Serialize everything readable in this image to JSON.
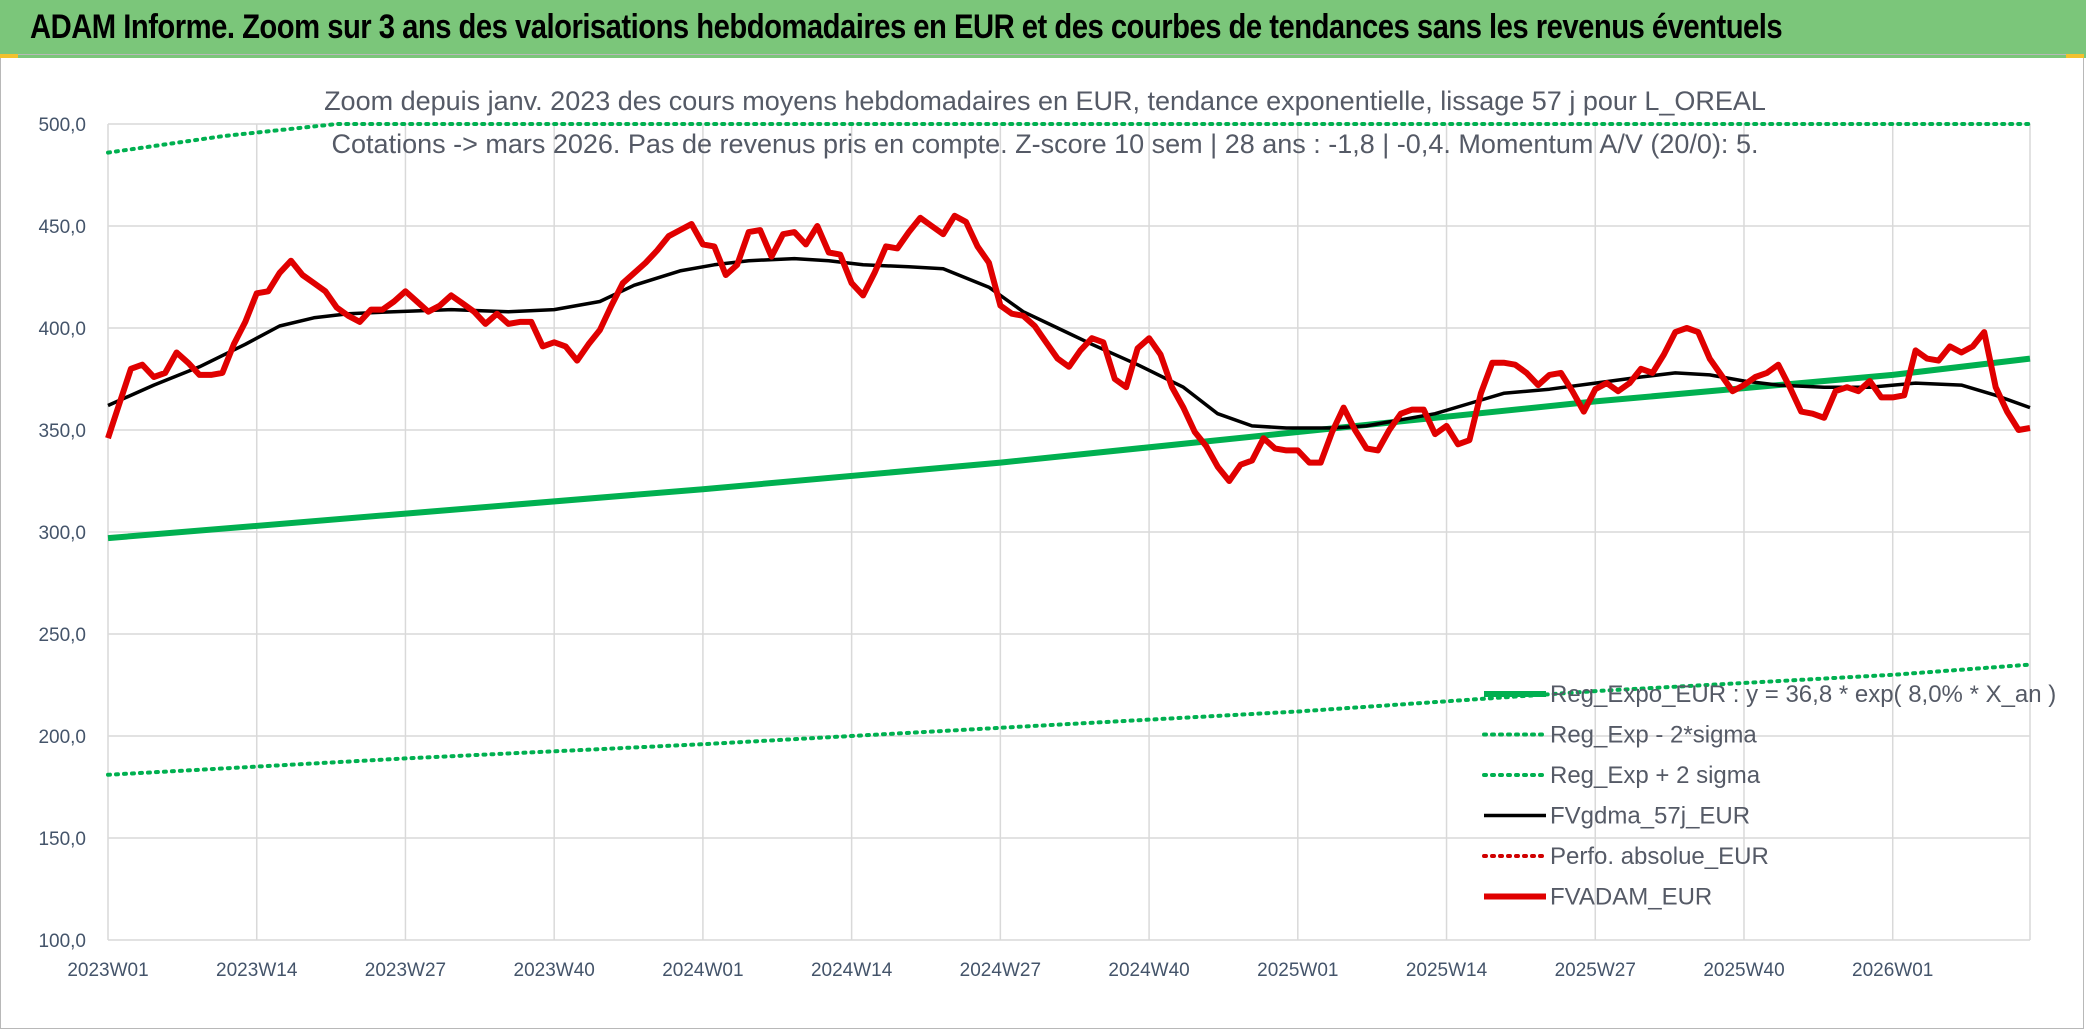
{
  "banner": {
    "title": "ADAM Informe. Zoom sur 3 ans des valorisations hebdomadaires en EUR et des courbes de tendances sans les revenus éventuels"
  },
  "chart_data": {
    "type": "line",
    "title_line1": "Zoom depuis janv. 2023 des cours moyens hebdomadaires en EUR, tendance exponentielle, lissage 57 j pour L_OREAL",
    "title_line2": "Cotations -> mars 2026. Pas de revenus pris en compte. Z-score 10 sem | 28 ans : -1,8 | -0,4. Momentum A/V (20/0): 5.",
    "ylim": [
      100,
      500
    ],
    "y_ticks": [
      "500,0",
      "450,0",
      "400,0",
      "350,0",
      "300,0",
      "250,0",
      "200,0",
      "150,0",
      "100,0"
    ],
    "y_tick_values": [
      500,
      450,
      400,
      350,
      300,
      250,
      200,
      150,
      100
    ],
    "x_ticks": [
      "2023W01",
      "2023W14",
      "2023W27",
      "2023W40",
      "2024W01",
      "2024W14",
      "2024W27",
      "2024W40",
      "2025W01",
      "2025W14",
      "2025W27",
      "2025W40",
      "2026W01"
    ],
    "x_tick_index": [
      0,
      13,
      26,
      39,
      52,
      65,
      78,
      91,
      104,
      117,
      130,
      143,
      156
    ],
    "n_weeks": 169,
    "grid": true,
    "legend_position": "bottom-right",
    "colors": {
      "trend": "#00b050",
      "band": "#00b050",
      "smooth": "#000000",
      "perf": "#d00000",
      "price": "#e00000",
      "grid": "#d9d9d9",
      "banner": "#7bc67a"
    },
    "series": [
      {
        "name": "Reg_Expo_EUR : y = 36,8 * exp( 8,0% *  X_an )",
        "style": "thick-solid",
        "color": "#00b050",
        "points": [
          [
            0,
            297
          ],
          [
            26,
            309
          ],
          [
            52,
            321
          ],
          [
            78,
            334
          ],
          [
            104,
            349
          ],
          [
            130,
            364
          ],
          [
            156,
            377
          ],
          [
            168,
            385
          ]
        ]
      },
      {
        "name": "Reg_Exp - 2*sigma",
        "style": "dotted",
        "color": "#00b050",
        "points": [
          [
            0,
            181
          ],
          [
            26,
            189
          ],
          [
            52,
            196
          ],
          [
            78,
            204
          ],
          [
            104,
            212
          ],
          [
            130,
            222
          ],
          [
            156,
            230
          ],
          [
            168,
            235
          ]
        ]
      },
      {
        "name": "Reg_Exp + 2 sigma",
        "style": "dotted",
        "color": "#00b050",
        "points": [
          [
            0,
            486
          ],
          [
            10,
            494
          ],
          [
            20,
            500
          ],
          [
            168,
            500
          ]
        ]
      },
      {
        "name": "FVgdma_57j_EUR",
        "style": "solid",
        "color": "#000000",
        "points": [
          [
            0,
            362
          ],
          [
            4,
            372
          ],
          [
            8,
            381
          ],
          [
            12,
            392
          ],
          [
            15,
            401
          ],
          [
            18,
            405
          ],
          [
            21,
            407
          ],
          [
            25,
            408
          ],
          [
            30,
            409
          ],
          [
            35,
            408
          ],
          [
            39,
            409
          ],
          [
            43,
            413
          ],
          [
            46,
            421
          ],
          [
            50,
            428
          ],
          [
            53,
            431
          ],
          [
            56,
            433
          ],
          [
            60,
            434
          ],
          [
            63,
            433
          ],
          [
            66,
            431
          ],
          [
            70,
            430
          ],
          [
            73,
            429
          ],
          [
            77,
            420
          ],
          [
            80,
            408
          ],
          [
            83,
            400
          ],
          [
            86,
            392
          ],
          [
            90,
            382
          ],
          [
            94,
            371
          ],
          [
            97,
            358
          ],
          [
            100,
            352
          ],
          [
            103,
            351
          ],
          [
            107,
            351
          ],
          [
            110,
            352
          ],
          [
            113,
            355
          ],
          [
            116,
            358
          ],
          [
            119,
            363
          ],
          [
            122,
            368
          ],
          [
            126,
            370
          ],
          [
            130,
            373
          ],
          [
            134,
            376
          ],
          [
            137,
            378
          ],
          [
            140,
            377
          ],
          [
            143,
            374
          ],
          [
            146,
            372
          ],
          [
            150,
            371
          ],
          [
            154,
            371
          ],
          [
            158,
            373
          ],
          [
            162,
            372
          ],
          [
            165,
            367
          ],
          [
            168,
            361
          ]
        ]
      },
      {
        "name": "Perfo. absolue_EUR",
        "style": "dotted",
        "color": "#d00000",
        "points": []
      },
      {
        "name": "FVADAM_EUR",
        "style": "thick-solid",
        "color": "#e00000",
        "points": [
          [
            0,
            346
          ],
          [
            1,
            363
          ],
          [
            2,
            380
          ],
          [
            3,
            382
          ],
          [
            4,
            376
          ],
          [
            5,
            378
          ],
          [
            6,
            388
          ],
          [
            7,
            383
          ],
          [
            8,
            377
          ],
          [
            9,
            377
          ],
          [
            10,
            378
          ],
          [
            11,
            392
          ],
          [
            12,
            403
          ],
          [
            13,
            417
          ],
          [
            14,
            418
          ],
          [
            15,
            427
          ],
          [
            16,
            433
          ],
          [
            17,
            426
          ],
          [
            18,
            422
          ],
          [
            19,
            418
          ],
          [
            20,
            410
          ],
          [
            21,
            406
          ],
          [
            22,
            403
          ],
          [
            23,
            409
          ],
          [
            24,
            409
          ],
          [
            25,
            413
          ],
          [
            26,
            418
          ],
          [
            27,
            413
          ],
          [
            28,
            408
          ],
          [
            29,
            411
          ],
          [
            30,
            416
          ],
          [
            31,
            412
          ],
          [
            32,
            408
          ],
          [
            33,
            402
          ],
          [
            34,
            407
          ],
          [
            35,
            402
          ],
          [
            36,
            403
          ],
          [
            37,
            403
          ],
          [
            38,
            391
          ],
          [
            39,
            393
          ],
          [
            40,
            391
          ],
          [
            41,
            384
          ],
          [
            42,
            392
          ],
          [
            43,
            399
          ],
          [
            44,
            411
          ],
          [
            45,
            422
          ],
          [
            46,
            427
          ],
          [
            47,
            432
          ],
          [
            48,
            438
          ],
          [
            49,
            445
          ],
          [
            50,
            448
          ],
          [
            51,
            451
          ],
          [
            52,
            441
          ],
          [
            53,
            440
          ],
          [
            54,
            426
          ],
          [
            55,
            431
          ],
          [
            56,
            447
          ],
          [
            57,
            448
          ],
          [
            58,
            435
          ],
          [
            59,
            446
          ],
          [
            60,
            447
          ],
          [
            61,
            441
          ],
          [
            62,
            450
          ],
          [
            63,
            437
          ],
          [
            64,
            436
          ],
          [
            65,
            422
          ],
          [
            66,
            416
          ],
          [
            67,
            427
          ],
          [
            68,
            440
          ],
          [
            69,
            439
          ],
          [
            70,
            447
          ],
          [
            71,
            454
          ],
          [
            72,
            450
          ],
          [
            73,
            446
          ],
          [
            74,
            455
          ],
          [
            75,
            452
          ],
          [
            76,
            440
          ],
          [
            77,
            432
          ],
          [
            78,
            411
          ],
          [
            79,
            407
          ],
          [
            80,
            406
          ],
          [
            81,
            401
          ],
          [
            82,
            393
          ],
          [
            83,
            385
          ],
          [
            84,
            381
          ],
          [
            85,
            389
          ],
          [
            86,
            395
          ],
          [
            87,
            393
          ],
          [
            88,
            375
          ],
          [
            89,
            371
          ],
          [
            90,
            390
          ],
          [
            91,
            395
          ],
          [
            92,
            387
          ],
          [
            93,
            371
          ],
          [
            94,
            361
          ],
          [
            95,
            349
          ],
          [
            96,
            342
          ],
          [
            97,
            332
          ],
          [
            98,
            325
          ],
          [
            99,
            333
          ],
          [
            100,
            335
          ],
          [
            101,
            346
          ],
          [
            102,
            341
          ],
          [
            103,
            340
          ],
          [
            104,
            340
          ],
          [
            105,
            334
          ],
          [
            106,
            334
          ],
          [
            107,
            349
          ],
          [
            108,
            361
          ],
          [
            109,
            350
          ],
          [
            110,
            341
          ],
          [
            111,
            340
          ],
          [
            112,
            350
          ],
          [
            113,
            358
          ],
          [
            114,
            360
          ],
          [
            115,
            360
          ],
          [
            116,
            348
          ],
          [
            117,
            352
          ],
          [
            118,
            343
          ],
          [
            119,
            345
          ],
          [
            120,
            368
          ],
          [
            121,
            383
          ],
          [
            122,
            383
          ],
          [
            123,
            382
          ],
          [
            124,
            378
          ],
          [
            125,
            372
          ],
          [
            126,
            377
          ],
          [
            127,
            378
          ],
          [
            128,
            369
          ],
          [
            129,
            359
          ],
          [
            130,
            370
          ],
          [
            131,
            373
          ],
          [
            132,
            369
          ],
          [
            133,
            373
          ],
          [
            134,
            380
          ],
          [
            135,
            378
          ],
          [
            136,
            387
          ],
          [
            137,
            398
          ],
          [
            138,
            400
          ],
          [
            139,
            398
          ],
          [
            140,
            385
          ],
          [
            141,
            377
          ],
          [
            142,
            369
          ],
          [
            143,
            372
          ],
          [
            144,
            376
          ],
          [
            145,
            378
          ],
          [
            146,
            382
          ],
          [
            147,
            371
          ],
          [
            148,
            359
          ],
          [
            149,
            358
          ],
          [
            150,
            356
          ],
          [
            151,
            369
          ],
          [
            152,
            371
          ],
          [
            153,
            369
          ],
          [
            154,
            374
          ],
          [
            155,
            366
          ],
          [
            156,
            366
          ],
          [
            157,
            367
          ],
          [
            158,
            389
          ],
          [
            159,
            385
          ],
          [
            160,
            384
          ],
          [
            161,
            391
          ],
          [
            162,
            388
          ],
          [
            163,
            391
          ],
          [
            164,
            398
          ],
          [
            165,
            371
          ],
          [
            166,
            359
          ],
          [
            167,
            350
          ],
          [
            168,
            351
          ]
        ]
      }
    ]
  }
}
